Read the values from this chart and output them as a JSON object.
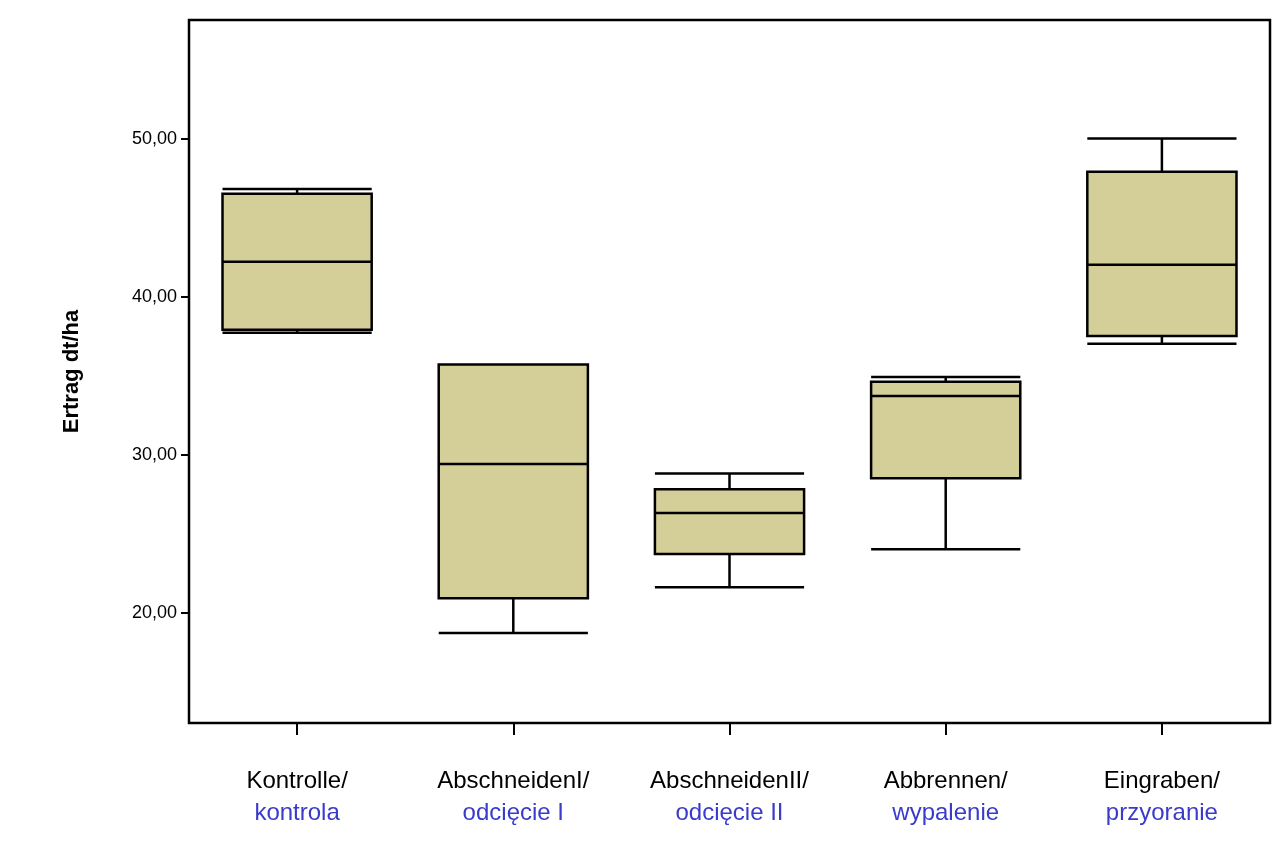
{
  "chart_data": {
    "type": "box",
    "ylabel": "Ertrag dt/ha",
    "categories": [
      "Kontrolle/\nkontrola",
      "AbschneidenI/\nodcięcie I",
      "AbschneidenII/\nodcięcie II",
      "Abbrennen/\nwypalenie",
      "Eingraben/\nprzyoranie"
    ],
    "boxes": [
      {
        "low": 37.7,
        "q1": 37.9,
        "median": 42.2,
        "q3": 46.5,
        "high": 46.8
      },
      {
        "low": 18.7,
        "q1": 20.9,
        "median": 29.4,
        "q3": 35.7,
        "high": 35.7
      },
      {
        "low": 21.6,
        "q1": 23.7,
        "median": 26.3,
        "q3": 27.8,
        "high": 28.8
      },
      {
        "low": 24.0,
        "q1": 28.5,
        "median": 33.7,
        "q3": 34.6,
        "high": 34.9
      },
      {
        "low": 37.0,
        "q1": 37.5,
        "median": 42.0,
        "q3": 47.9,
        "high": 50.0
      }
    ],
    "color": "#d4cf98",
    "ylim": [
      13,
      57.5
    ],
    "yticks": [
      {
        "value": 20,
        "label": "20,00"
      },
      {
        "value": 30,
        "label": "30,00"
      },
      {
        "value": 40,
        "label": "40,00"
      },
      {
        "value": 50,
        "label": "50,00"
      }
    ],
    "grid": false
  }
}
